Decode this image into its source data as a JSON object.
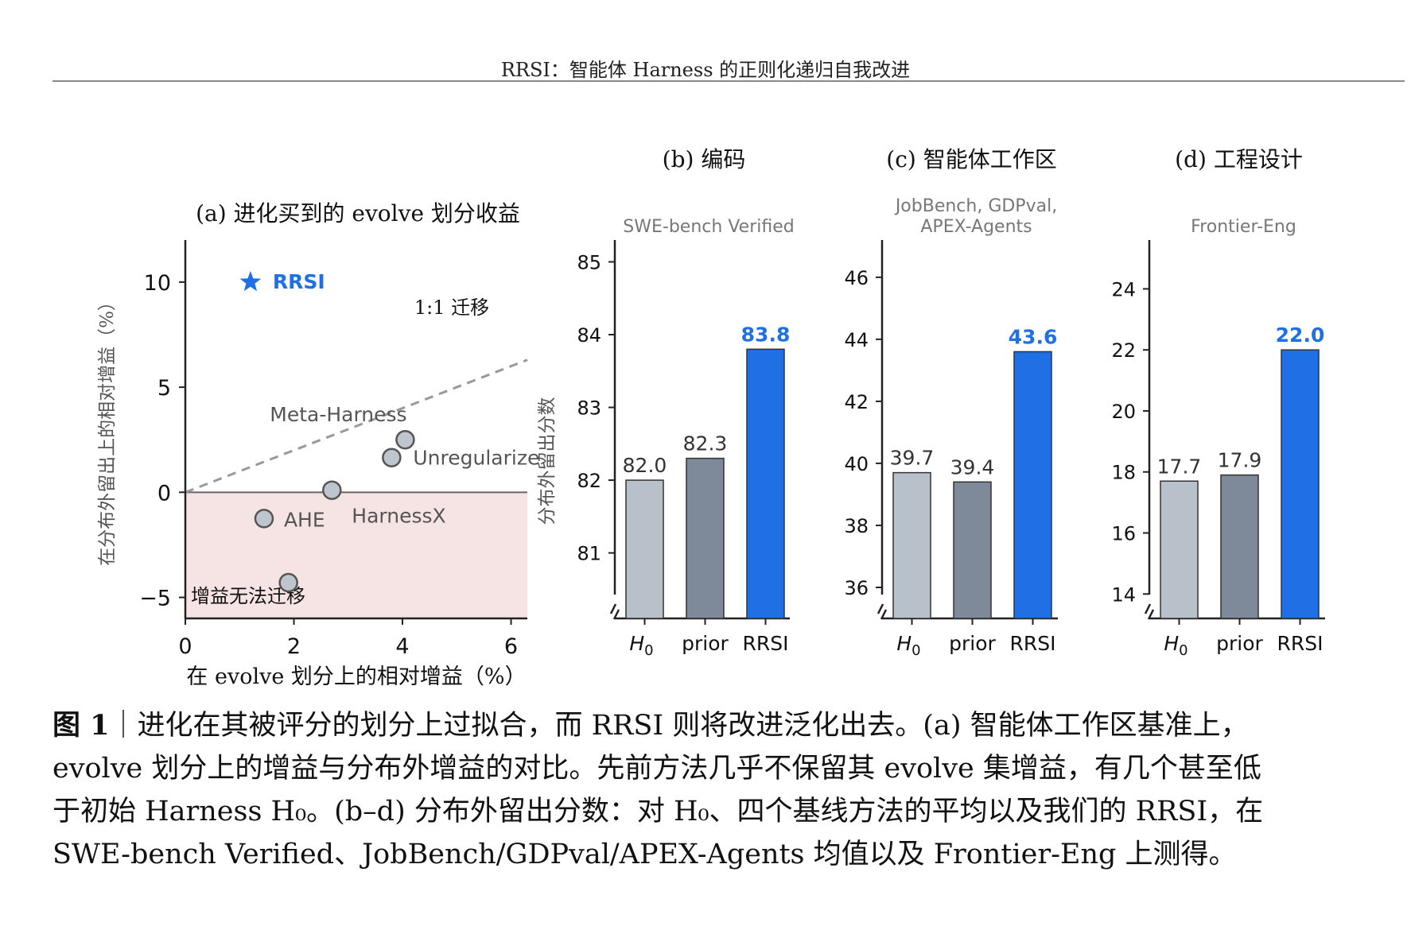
{
  "header": {
    "running_title": "RRSI：智能体 Harness 的正则化递归自我改进"
  },
  "chart_data": [
    {
      "type": "scatter",
      "title": "(a) 进化买到的 evolve 划分收益",
      "xlabel": "在 evolve 划分上的相对增益（%）",
      "ylabel": "在分布外留出上的相对增益（%）",
      "xlim": [
        0,
        6.3
      ],
      "ylim": [
        -6.0,
        12.0
      ],
      "x_ticks": [
        0,
        2,
        4,
        6
      ],
      "y_ticks": [
        -5,
        0,
        5,
        10
      ],
      "x_tick_labels": [
        "0",
        "2",
        "4",
        "6"
      ],
      "y_tick_labels": [
        "−5",
        "0",
        "5",
        "10"
      ],
      "reference_line": {
        "label": "1:1 迁移",
        "x": [
          0,
          6.3
        ],
        "y": [
          0,
          6.3
        ]
      },
      "shaded_region": {
        "label": "增益无法迁移",
        "y_below": 0
      },
      "points": [
        {
          "label": "RRSI",
          "x": 1.2,
          "y": 10.0,
          "marker": "star",
          "color": "#1f6fe5"
        },
        {
          "label": "Meta-Harness",
          "x": 4.05,
          "y": 2.5,
          "marker": "circle"
        },
        {
          "label": "Unregularize",
          "x": 3.8,
          "y": 1.65,
          "marker": "circle"
        },
        {
          "label": "HarnessX",
          "x": 2.7,
          "y": 0.1,
          "marker": "circle"
        },
        {
          "label": "AHE",
          "x": 1.45,
          "y": -1.25,
          "marker": "circle"
        },
        {
          "label": "",
          "x": 1.9,
          "y": -4.3,
          "marker": "circle"
        }
      ],
      "grid": false
    },
    {
      "type": "bar",
      "title": "(b) 编码",
      "subtitle": "SWE-bench Verified",
      "ylabel": "分布外留出分数",
      "categories": [
        "H0",
        "prior",
        "RRSI"
      ],
      "values": [
        82.0,
        82.3,
        83.8
      ],
      "value_labels": [
        "82.0",
        "82.3",
        "83.8"
      ],
      "ylim": [
        80.1,
        85.3
      ],
      "y_ticks": [
        81,
        82,
        83,
        84,
        85
      ],
      "y_tick_labels": [
        "81",
        "82",
        "83",
        "84",
        "85"
      ],
      "colors": [
        "#b8c0c9",
        "#7e8a99",
        "#1f6fe5"
      ]
    },
    {
      "type": "bar",
      "title": "(c) 智能体工作区",
      "subtitle_lines": [
        "JobBench, GDPval,",
        "APEX-Agents"
      ],
      "categories": [
        "H0",
        "prior",
        "RRSI"
      ],
      "values": [
        39.7,
        39.4,
        43.6
      ],
      "value_labels": [
        "39.7",
        "39.4",
        "43.6"
      ],
      "ylim": [
        35.0,
        47.2
      ],
      "y_ticks": [
        36,
        38,
        40,
        42,
        44,
        46
      ],
      "y_tick_labels": [
        "36",
        "38",
        "40",
        "42",
        "44",
        "46"
      ],
      "colors": [
        "#b8c0c9",
        "#7e8a99",
        "#1f6fe5"
      ]
    },
    {
      "type": "bar",
      "title": "(d) 工程设计",
      "subtitle": "Frontier-Eng",
      "categories": [
        "H0",
        "prior",
        "RRSI"
      ],
      "values": [
        17.7,
        17.9,
        22.0
      ],
      "value_labels": [
        "17.7",
        "17.9",
        "22.0"
      ],
      "ylim": [
        13.2,
        25.6
      ],
      "y_ticks": [
        14,
        16,
        18,
        20,
        22,
        24
      ],
      "y_tick_labels": [
        "14",
        "16",
        "18",
        "20",
        "22",
        "24"
      ],
      "colors": [
        "#b8c0c9",
        "#7e8a99",
        "#1f6fe5"
      ]
    }
  ],
  "caption": {
    "fig_label": "图 1",
    "line1": "｜进化在其被评分的划分上过拟合，而 RRSI 则将改进泛化出去。(a) 智能体工作区基准上，",
    "line2": "evolve 划分上的增益与分布外增益的对比。先前方法几乎不保留其 evolve 集增益，有几个甚至低",
    "line3": "于初始 Harness H₀。(b–d) 分布外留出分数：对 H₀、四个基线方法的平均以及我们的 RRSI，在",
    "line4": "SWE-bench Verified、JobBench/GDPval/APEX-Agents 均值以及 Frontier-Eng 上测得。"
  }
}
